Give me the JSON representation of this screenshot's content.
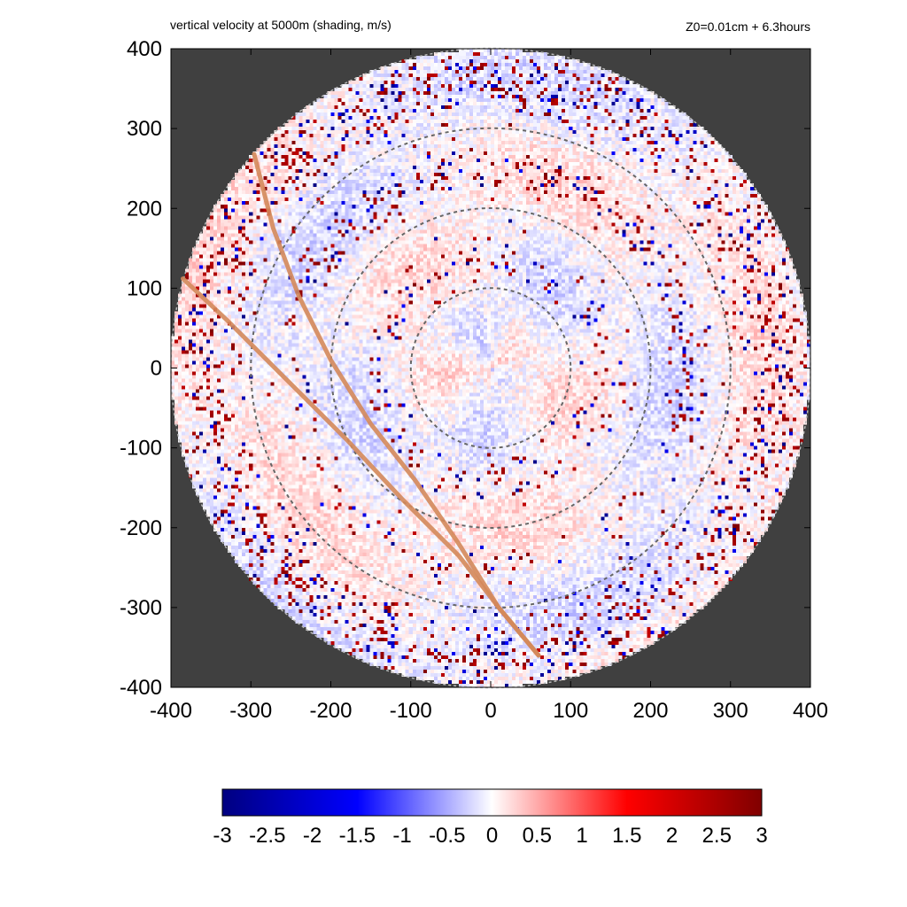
{
  "chart_data": {
    "type": "heatmap",
    "title": "vertical velocity at 5000m (shading, m/s)",
    "subtitle": "Z0=0.01cm  + 6.3hours",
    "xlabel": "",
    "ylabel": "",
    "xlim": [
      -400,
      400
    ],
    "ylim": [
      -400,
      400
    ],
    "x_ticks": [
      "-400",
      "-300",
      "-200",
      "-100",
      "0",
      "100",
      "200",
      "300",
      "400"
    ],
    "y_ticks": [
      "400",
      "300",
      "200",
      "100",
      "0",
      "-100",
      "-200",
      "-300",
      "-400"
    ],
    "domain_radius": 400,
    "background_color": "#404040",
    "range_rings": [
      100,
      200,
      300
    ],
    "ring_color": "#666666",
    "track_color": "#d4885a",
    "tracks": [
      {
        "points": [
          [
            -296,
            268
          ],
          [
            -272,
            175
          ],
          [
            -240,
            90
          ],
          [
            -200,
            10
          ],
          [
            -150,
            -70
          ],
          [
            -95,
            -140
          ],
          [
            -40,
            -220
          ],
          [
            10,
            -300
          ],
          [
            60,
            -360
          ]
        ]
      },
      {
        "points": [
          [
            -385,
            112
          ],
          [
            -330,
            60
          ],
          [
            -260,
            -10
          ],
          [
            -180,
            -90
          ],
          [
            -110,
            -165
          ],
          [
            -40,
            -235
          ],
          [
            10,
            -300
          ],
          [
            60,
            -360
          ]
        ]
      }
    ],
    "field_description": "spiral rainbands of updrafts/downdrafts, strongest near r=250-400 and near the inner rings",
    "colorbar": {
      "min": -3,
      "max": 3,
      "ticks": [
        "-3",
        "-2.5",
        "-2",
        "-1.5",
        "-1",
        "-0.5",
        "0",
        "0.5",
        "1",
        "1.5",
        "2",
        "2.5",
        "3"
      ],
      "colors": [
        "#000080",
        "#0000ff",
        "#ffffff",
        "#ff0000",
        "#800000"
      ]
    }
  },
  "labels": {
    "title": "vertical velocity at 5000m (shading, m/s)",
    "subtitle": "Z0=0.01cm  + 6.3hours"
  }
}
